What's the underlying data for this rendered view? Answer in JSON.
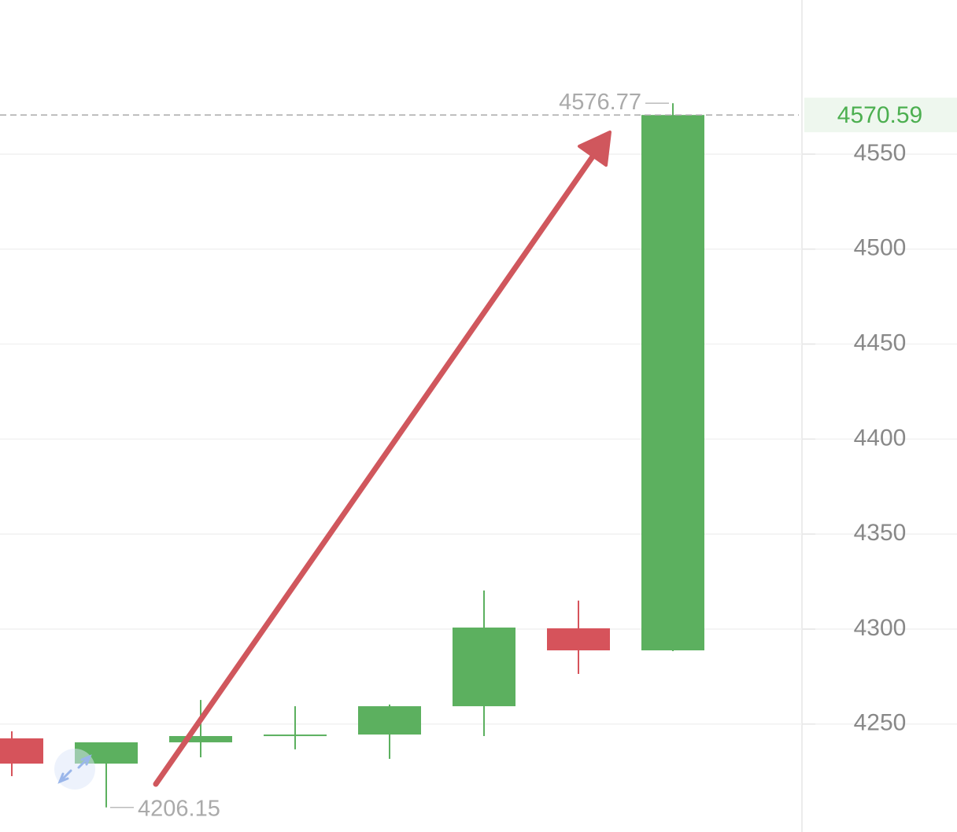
{
  "chart_data": {
    "type": "candlestick",
    "open": [
      4242.5,
      4229.2,
      4240.4,
      4243.9,
      4244.5,
      4259.4,
      4300.4,
      4288.8
    ],
    "high": [
      4246.2,
      4240.4,
      4262.7,
      4259.4,
      4260.3,
      4320.3,
      4315.0,
      4576.77
    ],
    "low": [
      4222.6,
      4206.15,
      4232.5,
      4236.7,
      4231.7,
      4243.7,
      4276.4,
      4288.4
    ],
    "close": [
      4229.2,
      4240.4,
      4243.7,
      4244.5,
      4259.4,
      4300.8,
      4288.8,
      4570.59
    ],
    "up_color": "#5cb05f",
    "down_color": "#d6535b",
    "ylim": [
      4193.2,
      4631.1
    ],
    "yticks": [
      4250,
      4300,
      4350,
      4400,
      4450,
      4500,
      4550
    ],
    "grid": true,
    "max_marker": 4576.77,
    "min_marker": 4206.15,
    "last_price": 4570.59
  }
}
